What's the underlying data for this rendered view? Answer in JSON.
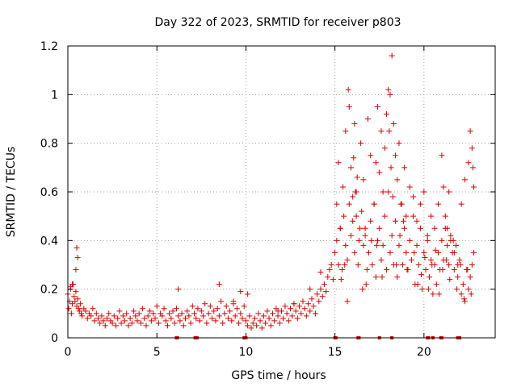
{
  "chart_data": {
    "type": "scatter",
    "title": "Day 322 of 2023, SRMTID for receiver p803",
    "xlabel": "GPS time / hours",
    "ylabel": "SRMTID / TECUs",
    "xlim": [
      0,
      24
    ],
    "ylim": [
      0,
      1.2
    ],
    "xticks": [
      0,
      5,
      10,
      15,
      20
    ],
    "yticks": [
      0,
      0.2,
      0.4,
      0.6,
      0.8,
      1.0,
      1.2
    ],
    "xtick_labels": [
      "0",
      "5",
      "10",
      "15",
      "20"
    ],
    "ytick_labels": [
      "0",
      "0.2",
      "0.4",
      "0.6",
      "0.8",
      "1",
      "1.2"
    ],
    "grid": true,
    "marker": "+",
    "color": "#e00000",
    "series": [
      {
        "name": "SRMTID p803",
        "x": [
          0.0,
          0.05,
          0.1,
          0.15,
          0.2,
          0.25,
          0.3,
          0.35,
          0.4,
          0.45,
          0.5,
          0.55,
          0.6,
          0.65,
          0.7,
          0.75,
          0.8,
          0.9,
          1.0,
          1.1,
          1.2,
          1.3,
          1.4,
          1.5,
          1.6,
          1.7,
          1.8,
          1.9,
          2.0,
          2.1,
          2.2,
          2.3,
          2.4,
          2.5,
          2.6,
          2.7,
          2.8,
          2.9,
          3.0,
          3.1,
          3.2,
          3.3,
          3.4,
          3.5,
          3.6,
          3.7,
          3.8,
          3.9,
          4.0,
          4.1,
          4.2,
          4.3,
          4.4,
          4.5,
          4.6,
          4.7,
          4.8,
          4.9,
          5.0,
          5.1,
          5.2,
          5.3,
          5.4,
          5.5,
          5.6,
          5.7,
          5.8,
          5.9,
          6.0,
          6.1,
          6.2,
          6.3,
          6.4,
          6.5,
          6.6,
          6.7,
          6.8,
          6.9,
          7.0,
          7.1,
          7.2,
          7.3,
          7.4,
          7.5,
          7.6,
          7.7,
          7.8,
          7.9,
          8.0,
          8.1,
          8.2,
          8.3,
          8.4,
          8.5,
          8.6,
          8.7,
          8.8,
          8.9,
          9.0,
          9.1,
          9.2,
          9.3,
          9.4,
          9.5,
          9.6,
          9.7,
          9.8,
          9.9,
          10.0,
          10.1,
          10.2,
          10.3,
          10.4,
          10.5,
          10.6,
          10.7,
          10.8,
          10.9,
          11.0,
          11.1,
          11.2,
          11.3,
          11.4,
          11.5,
          11.6,
          11.7,
          11.8,
          11.9,
          12.0,
          12.1,
          12.2,
          12.3,
          12.4,
          12.5,
          12.6,
          12.7,
          12.8,
          12.9,
          13.0,
          13.1,
          13.2,
          13.3,
          13.4,
          13.5,
          13.6,
          13.7,
          13.8,
          13.9,
          14.0,
          14.1,
          14.2,
          14.3,
          14.4,
          14.5,
          14.6,
          14.7,
          14.8,
          14.9,
          15.0,
          15.1,
          15.2,
          15.3,
          15.4,
          15.5,
          15.6,
          15.7,
          15.8,
          15.9,
          16.0,
          16.1,
          16.2,
          16.3,
          16.4,
          16.5,
          16.6,
          16.7,
          16.8,
          16.9,
          17.0,
          17.1,
          17.2,
          17.3,
          17.4,
          17.5,
          17.6,
          17.7,
          17.8,
          17.9,
          18.0,
          18.1,
          18.2,
          18.3,
          18.4,
          18.5,
          18.6,
          18.7,
          18.8,
          18.9,
          19.0,
          19.1,
          19.2,
          19.3,
          19.4,
          19.5,
          19.6,
          19.7,
          19.8,
          19.9,
          20.0,
          20.1,
          20.2,
          20.3,
          20.4,
          20.5,
          20.6,
          20.7,
          20.8,
          20.9,
          21.0,
          21.1,
          21.2,
          21.3,
          21.4,
          21.5,
          21.6,
          21.7,
          21.8,
          21.9,
          22.0,
          22.1,
          22.2,
          22.3,
          22.4,
          22.5,
          22.6,
          22.7,
          22.8,
          0.5,
          0.55,
          0.45,
          0.15,
          0.25,
          15.1,
          15.2,
          15.3,
          15.45,
          15.6,
          15.75,
          15.8,
          15.9,
          16.0,
          16.05,
          16.1,
          16.2,
          16.25,
          16.35,
          16.45,
          16.6,
          16.7,
          16.85,
          17.0,
          17.2,
          17.3,
          17.4,
          17.5,
          17.6,
          17.7,
          17.8,
          17.9,
          18.0,
          18.05,
          18.1,
          18.15,
          18.2,
          18.3,
          18.4,
          18.5,
          18.6,
          18.75,
          18.9,
          19.0,
          19.2,
          19.4,
          19.6,
          19.8,
          20.0,
          20.2,
          20.4,
          20.6,
          20.8,
          21.0,
          21.1,
          21.2,
          21.3,
          21.4,
          21.5,
          21.7,
          21.9,
          22.1,
          22.3,
          22.5,
          22.6,
          22.7,
          22.75,
          22.8,
          6.2,
          8.5,
          9.3,
          9.7,
          10.1,
          11.8,
          12.7,
          13.6,
          14.2,
          15.35,
          15.55,
          15.7,
          16.15,
          16.55,
          16.75,
          17.05,
          17.35,
          17.65,
          18.25,
          18.45,
          18.65,
          18.85,
          19.05,
          19.45,
          19.65,
          19.85,
          20.05,
          20.25,
          20.45,
          20.65,
          20.85,
          21.05,
          21.25,
          21.45,
          21.65,
          21.85,
          22.05,
          22.25,
          22.45,
          22.65
        ],
        "y": [
          0.18,
          0.12,
          0.15,
          0.2,
          0.1,
          0.14,
          0.22,
          0.17,
          0.15,
          0.19,
          0.13,
          0.16,
          0.12,
          0.11,
          0.14,
          0.1,
          0.09,
          0.12,
          0.11,
          0.08,
          0.1,
          0.09,
          0.12,
          0.07,
          0.1,
          0.08,
          0.06,
          0.09,
          0.07,
          0.05,
          0.08,
          0.1,
          0.07,
          0.06,
          0.09,
          0.05,
          0.08,
          0.11,
          0.06,
          0.09,
          0.07,
          0.1,
          0.05,
          0.08,
          0.06,
          0.11,
          0.09,
          0.07,
          0.1,
          0.06,
          0.12,
          0.08,
          0.05,
          0.09,
          0.11,
          0.07,
          0.1,
          0.08,
          0.13,
          0.06,
          0.1,
          0.09,
          0.12,
          0.07,
          0.05,
          0.1,
          0.08,
          0.11,
          0.06,
          0.12,
          0.09,
          0.07,
          0.1,
          0.05,
          0.08,
          0.11,
          0.09,
          0.06,
          0.13,
          0.1,
          0.08,
          0.12,
          0.07,
          0.11,
          0.09,
          0.14,
          0.06,
          0.1,
          0.13,
          0.08,
          0.11,
          0.07,
          0.12,
          0.09,
          0.15,
          0.06,
          0.1,
          0.13,
          0.08,
          0.11,
          0.07,
          0.14,
          0.09,
          0.12,
          0.06,
          0.1,
          0.08,
          0.13,
          0.07,
          0.05,
          0.09,
          0.04,
          0.06,
          0.08,
          0.05,
          0.1,
          0.07,
          0.04,
          0.09,
          0.06,
          0.11,
          0.08,
          0.05,
          0.1,
          0.07,
          0.12,
          0.09,
          0.06,
          0.11,
          0.08,
          0.13,
          0.1,
          0.07,
          0.12,
          0.09,
          0.14,
          0.11,
          0.08,
          0.13,
          0.1,
          0.15,
          0.12,
          0.09,
          0.14,
          0.11,
          0.16,
          0.13,
          0.1,
          0.18,
          0.15,
          0.2,
          0.17,
          0.22,
          0.19,
          0.25,
          0.28,
          0.3,
          0.24,
          0.35,
          0.4,
          0.3,
          0.45,
          0.28,
          0.5,
          0.38,
          0.32,
          0.55,
          0.42,
          0.48,
          0.35,
          0.6,
          0.3,
          0.45,
          0.52,
          0.38,
          0.42,
          0.28,
          0.35,
          0.48,
          0.3,
          0.55,
          0.25,
          0.4,
          0.45,
          0.32,
          0.38,
          0.5,
          0.28,
          0.6,
          0.35,
          0.42,
          0.3,
          0.48,
          0.25,
          0.38,
          0.55,
          0.3,
          0.45,
          0.35,
          0.28,
          0.4,
          0.32,
          0.5,
          0.22,
          0.38,
          0.3,
          0.45,
          0.2,
          0.35,
          0.28,
          0.4,
          0.25,
          0.32,
          0.18,
          0.3,
          0.22,
          0.35,
          0.28,
          0.4,
          0.32,
          0.45,
          0.38,
          0.3,
          0.42,
          0.35,
          0.28,
          0.38,
          0.25,
          0.32,
          0.18,
          0.22,
          0.15,
          0.28,
          0.2,
          0.25,
          0.3,
          0.35,
          0.37,
          0.33,
          0.28,
          0.21,
          0.22,
          0.55,
          0.72,
          0.45,
          0.62,
          0.85,
          1.02,
          0.95,
          0.7,
          0.58,
          0.74,
          0.88,
          0.5,
          0.66,
          0.4,
          0.8,
          0.65,
          0.45,
          0.9,
          0.75,
          0.55,
          0.72,
          0.95,
          0.68,
          0.85,
          0.6,
          0.78,
          0.92,
          1.02,
          0.85,
          1.0,
          0.7,
          1.16,
          0.88,
          0.75,
          0.65,
          0.8,
          0.55,
          0.7,
          0.5,
          0.62,
          0.58,
          0.48,
          0.55,
          0.6,
          0.42,
          0.5,
          0.45,
          0.55,
          0.75,
          0.62,
          0.5,
          0.45,
          0.6,
          0.4,
          0.35,
          0.3,
          0.55,
          0.65,
          0.72,
          0.85,
          0.78,
          0.7,
          0.62,
          0.2,
          0.22,
          0.15,
          0.19,
          0.18,
          0.11,
          0.14,
          0.2,
          0.27,
          0.24,
          0.3,
          0.15,
          0.6,
          0.2,
          0.22,
          0.4,
          0.38,
          0.25,
          0.58,
          0.3,
          0.42,
          0.48,
          0.28,
          0.35,
          0.22,
          0.26,
          0.33,
          0.2,
          0.3,
          0.36,
          0.18,
          0.28,
          0.32,
          0.24,
          0.4,
          0.2,
          0.3,
          0.16,
          0.28,
          0.18
        ]
      }
    ],
    "baseline_marks_x": [
      15.0,
      15.05,
      16.3,
      16.35,
      17.5,
      18.2,
      20.2,
      20.25,
      20.5,
      20.95,
      21.0,
      21.9,
      22.0,
      6.1,
      6.15,
      7.15,
      7.2,
      7.25,
      9.9,
      10.0
    ]
  }
}
